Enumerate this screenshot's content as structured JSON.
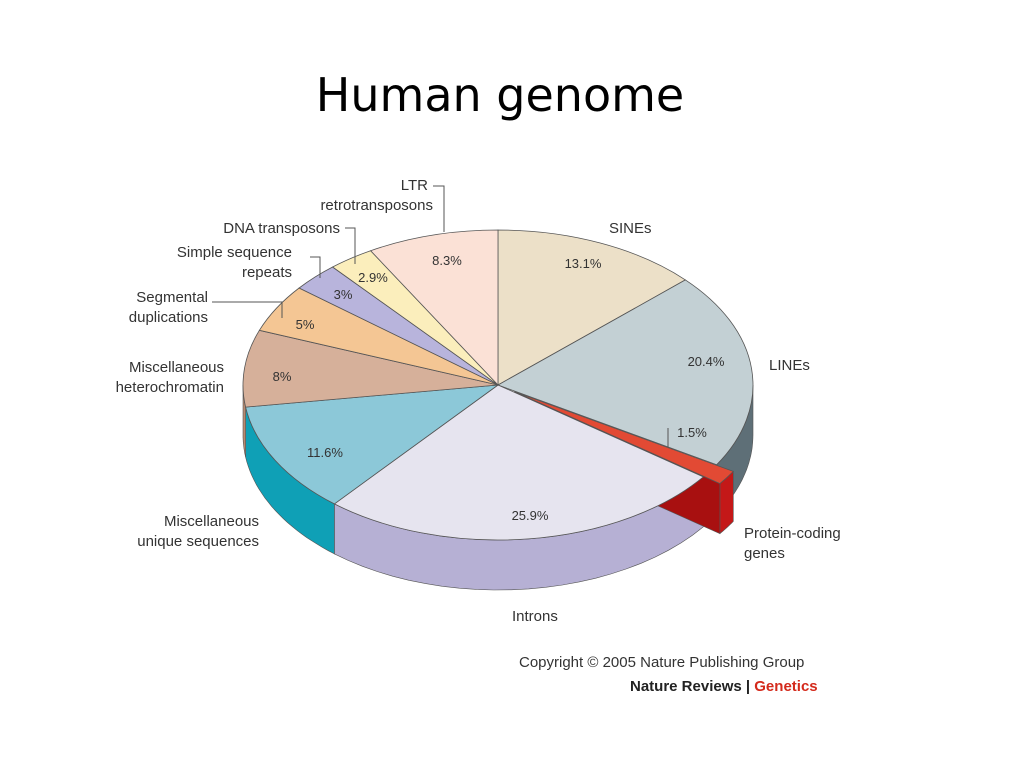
{
  "slide": {
    "title": "Human genome"
  },
  "chart_data": {
    "type": "pie",
    "title": "",
    "slices": [
      {
        "label": "SINEs",
        "value": 13.1,
        "value_label": "13.1%",
        "color": "#ece0c8",
        "side_color": "#c9bda4"
      },
      {
        "label": "LINEs",
        "value": 20.4,
        "value_label": "20.4%",
        "color": "#c3d0d4",
        "side_color": "#5e6f77"
      },
      {
        "label": "Protein-coding genes",
        "value": 1.5,
        "value_label": "1.5%",
        "color": "#e24a34",
        "side_color": "#c41818",
        "exploded": true
      },
      {
        "label": "Introns",
        "value": 25.9,
        "value_label": "25.9%",
        "color": "#e6e4ef",
        "side_color": "#b6b0d4"
      },
      {
        "label": "Miscellaneous unique sequences",
        "value": 11.6,
        "value_label": "11.6%",
        "color": "#8cc8d8",
        "side_color": "#0fa0b6"
      },
      {
        "label": "Miscellaneous heterochromatin",
        "value": 8,
        "value_label": "8%",
        "color": "#d6b09a",
        "side_color": "#b88a70"
      },
      {
        "label": "Segmental duplications",
        "value": 5,
        "value_label": "5%",
        "color": "#f4c694",
        "side_color": "#d9a474"
      },
      {
        "label": "Simple sequence repeats",
        "value": 3,
        "value_label": "3%",
        "color": "#b8b4dc",
        "side_color": "#928ec0"
      },
      {
        "label": "DNA transposons",
        "value": 2.9,
        "value_label": "2.9%",
        "color": "#fbeebc",
        "side_color": "#d8c890"
      },
      {
        "label": "LTR retrotransposons",
        "value": 8.3,
        "value_label": "8.3%",
        "color": "#fbe1d6",
        "side_color": "#d8bcae"
      }
    ],
    "external_labels": {
      "sines": "SINEs",
      "lines": "LINEs",
      "protein_1": "Protein-coding",
      "protein_2": "genes",
      "introns": "Introns",
      "unique_1": "Miscellaneous",
      "unique_2": "unique sequences",
      "hetero_1": "Miscellaneous",
      "hetero_2": "heterochromatin",
      "segdup_1": "Segmental",
      "segdup_2": "duplications",
      "ssr_1": "Simple sequence",
      "ssr_2": "repeats",
      "dna": "DNA transposons",
      "ltr_1": "LTR",
      "ltr_2": "retrotransposons"
    }
  },
  "footer": {
    "copyright": "Copyright © 2005 Nature Publishing Group",
    "journal_prefix": "Nature Reviews",
    "separator": "|",
    "journal_name": "Genetics"
  }
}
